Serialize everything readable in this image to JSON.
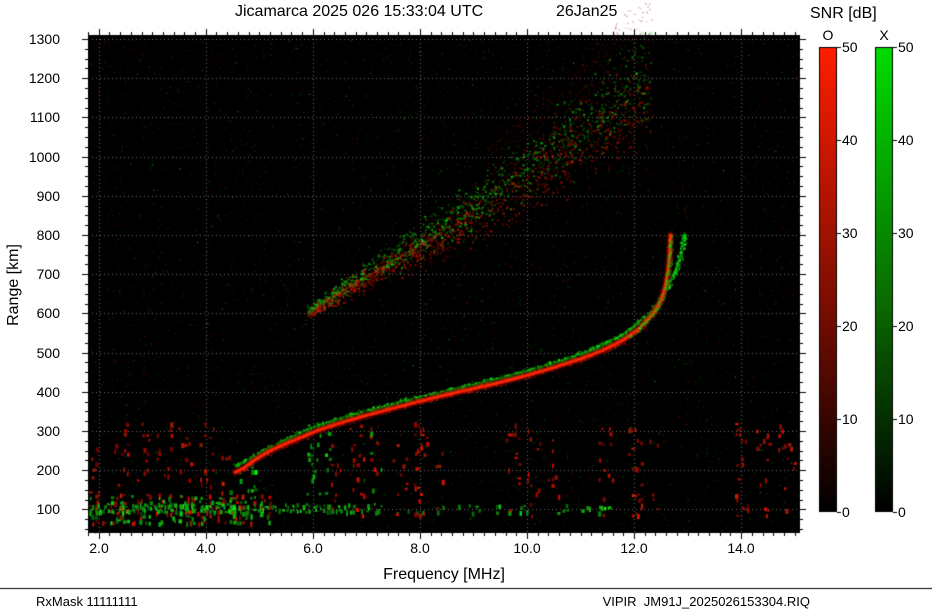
{
  "header": {
    "footer_left": "RxMask 11111111",
    "footer_right": "VIPIR  JM91J_2025026153304.RIQ"
  },
  "chart_data": {
    "type": "scatter",
    "title": "Jicamarca 2025 026 15:33:04 UTC",
    "date_label": "26Jan25",
    "xlabel": "Frequency [MHz]",
    "ylabel": "Range [km]",
    "xlim": [
      1.8,
      15.1
    ],
    "ylim": [
      40,
      1310
    ],
    "grid": true,
    "x_tick_labels": [
      "2.0",
      "4.0",
      "6.0",
      "8.0",
      "10.0",
      "12.0",
      "14.0"
    ],
    "x_ticks": [
      2,
      4,
      6,
      8,
      10,
      12,
      14
    ],
    "y_tick_labels": [
      "1300",
      "1200",
      "1100",
      "1000",
      "900",
      "800",
      "700",
      "600",
      "500",
      "400",
      "300",
      "200",
      "100"
    ],
    "y_ticks": [
      1300,
      1200,
      1100,
      1000,
      900,
      800,
      700,
      600,
      500,
      400,
      300,
      200,
      100
    ],
    "colorbar": {
      "title": "SNR [dB]",
      "o_label": "O",
      "x_label": "X",
      "tick_labels": [
        "50",
        "40",
        "30",
        "20",
        "10",
        "0"
      ],
      "min": 0,
      "max": 50,
      "o_top": "#ff1e00",
      "o_mid": "#7c0e00",
      "x_top": "#00dc00",
      "x_mid": "#0a6a00",
      "bottom": "#000000"
    },
    "colors": {
      "page_bg": "#ffffff",
      "plot_bg": "#000000",
      "grid": "#9a9a9a",
      "o_core": "#ff2800",
      "o_mid": "#b41400",
      "o_glow": "#5a0000",
      "x_core": "#00dd00",
      "frame": "#000000"
    },
    "traces": {
      "o_mode": [
        [
          4.55,
          195
        ],
        [
          4.7,
          205
        ],
        [
          4.9,
          225
        ],
        [
          5.2,
          250
        ],
        [
          5.5,
          268
        ],
        [
          5.8,
          285
        ],
        [
          6.1,
          302
        ],
        [
          6.5,
          320
        ],
        [
          7.0,
          340
        ],
        [
          7.5,
          358
        ],
        [
          8.0,
          376
        ],
        [
          8.5,
          393
        ],
        [
          9.0,
          408
        ],
        [
          9.5,
          424
        ],
        [
          10.0,
          442
        ],
        [
          10.5,
          462
        ],
        [
          11.0,
          484
        ],
        [
          11.4,
          505
        ],
        [
          11.8,
          532
        ],
        [
          12.1,
          562
        ],
        [
          12.35,
          598
        ],
        [
          12.5,
          632
        ],
        [
          12.58,
          668
        ],
        [
          12.63,
          705
        ],
        [
          12.66,
          745
        ],
        [
          12.68,
          800
        ]
      ],
      "x_mode": [
        [
          4.55,
          212
        ],
        [
          4.8,
          230
        ],
        [
          5.1,
          252
        ],
        [
          5.4,
          272
        ],
        [
          5.7,
          292
        ],
        [
          6.0,
          310
        ],
        [
          6.4,
          328
        ],
        [
          6.9,
          348
        ],
        [
          7.4,
          366
        ],
        [
          7.9,
          384
        ],
        [
          8.4,
          400
        ],
        [
          8.9,
          416
        ],
        [
          9.4,
          432
        ],
        [
          9.9,
          450
        ],
        [
          10.4,
          470
        ],
        [
          10.9,
          492
        ],
        [
          11.3,
          514
        ],
        [
          11.7,
          540
        ],
        [
          12.0,
          568
        ],
        [
          12.3,
          602
        ],
        [
          12.5,
          640
        ],
        [
          12.65,
          678
        ],
        [
          12.78,
          715
        ],
        [
          12.87,
          755
        ],
        [
          12.93,
          805
        ]
      ],
      "second_hop": [
        [
          5.9,
          600
        ],
        [
          6.4,
          645
        ],
        [
          6.9,
          685
        ],
        [
          7.4,
          725
        ],
        [
          7.9,
          765
        ],
        [
          8.4,
          805
        ],
        [
          8.9,
          848
        ],
        [
          9.4,
          892
        ],
        [
          9.9,
          938
        ],
        [
          10.4,
          985
        ],
        [
          10.9,
          1032
        ],
        [
          11.4,
          1082
        ],
        [
          11.9,
          1135
        ],
        [
          12.3,
          1180
        ]
      ]
    },
    "speckle_bands": [
      {
        "f0": 1.82,
        "f1": 5.2,
        "r0": 60,
        "r1": 135,
        "density": 0.5,
        "color": "mix",
        "dashed": false
      },
      {
        "f0": 1.82,
        "f1": 7.3,
        "r0": 90,
        "r1": 113,
        "density": 0.65,
        "color": "green",
        "dashed": false
      },
      {
        "f0": 7.3,
        "f1": 11.6,
        "r0": 93,
        "r1": 110,
        "density": 0.2,
        "color": "green",
        "dashed": false
      },
      {
        "f0": 1.82,
        "f1": 2.02,
        "r0": 60,
        "r1": 310,
        "density": 0.22,
        "color": "red",
        "dashed": true
      },
      {
        "f0": 2.3,
        "f1": 2.55,
        "r0": 90,
        "r1": 320,
        "density": 0.3,
        "color": "red",
        "dashed": true
      },
      {
        "f0": 2.72,
        "f1": 2.95,
        "r0": 90,
        "r1": 320,
        "density": 0.28,
        "color": "red",
        "dashed": true
      },
      {
        "f0": 3.1,
        "f1": 3.35,
        "r0": 90,
        "r1": 320,
        "density": 0.32,
        "color": "red",
        "dashed": true
      },
      {
        "f0": 3.5,
        "f1": 3.75,
        "r0": 90,
        "r1": 320,
        "density": 0.28,
        "color": "red",
        "dashed": true
      },
      {
        "f0": 3.9,
        "f1": 4.15,
        "r0": 90,
        "r1": 320,
        "density": 0.28,
        "color": "red",
        "dashed": true
      },
      {
        "f0": 4.3,
        "f1": 4.5,
        "r0": 90,
        "r1": 260,
        "density": 0.22,
        "color": "red",
        "dashed": true
      },
      {
        "f0": 4.45,
        "f1": 4.95,
        "r0": 140,
        "r1": 215,
        "density": 0.3,
        "color": "green",
        "dashed": false
      },
      {
        "f0": 5.9,
        "f1": 6.3,
        "r0": 140,
        "r1": 320,
        "density": 0.32,
        "color": "green",
        "dashed": true
      },
      {
        "f0": 6.35,
        "f1": 6.6,
        "r0": 90,
        "r1": 320,
        "density": 0.3,
        "color": "red",
        "dashed": true
      },
      {
        "f0": 6.7,
        "f1": 6.95,
        "r0": 90,
        "r1": 320,
        "density": 0.28,
        "color": "red",
        "dashed": true
      },
      {
        "f0": 6.95,
        "f1": 7.3,
        "r0": 150,
        "r1": 310,
        "density": 0.25,
        "color": "mix",
        "dashed": true
      },
      {
        "f0": 7.5,
        "f1": 7.75,
        "r0": 90,
        "r1": 320,
        "density": 0.28,
        "color": "red",
        "dashed": true
      },
      {
        "f0": 7.9,
        "f1": 8.15,
        "r0": 90,
        "r1": 320,
        "density": 0.28,
        "color": "red",
        "dashed": true
      },
      {
        "f0": 8.3,
        "f1": 8.5,
        "r0": 90,
        "r1": 250,
        "density": 0.2,
        "color": "red",
        "dashed": true
      },
      {
        "f0": 9.6,
        "f1": 9.85,
        "r0": 90,
        "r1": 320,
        "density": 0.28,
        "color": "red",
        "dashed": true
      },
      {
        "f0": 10.0,
        "f1": 10.25,
        "r0": 90,
        "r1": 320,
        "density": 0.28,
        "color": "red",
        "dashed": true
      },
      {
        "f0": 10.4,
        "f1": 10.6,
        "r0": 90,
        "r1": 280,
        "density": 0.22,
        "color": "red",
        "dashed": true
      },
      {
        "f0": 11.35,
        "f1": 11.6,
        "r0": 90,
        "r1": 320,
        "density": 0.28,
        "color": "red",
        "dashed": true
      },
      {
        "f0": 11.9,
        "f1": 12.15,
        "r0": 90,
        "r1": 320,
        "density": 0.28,
        "color": "red",
        "dashed": true
      },
      {
        "f0": 12.3,
        "f1": 12.5,
        "r0": 90,
        "r1": 280,
        "density": 0.22,
        "color": "red",
        "dashed": true
      },
      {
        "f0": 13.9,
        "f1": 14.15,
        "r0": 90,
        "r1": 320,
        "density": 0.3,
        "color": "red",
        "dashed": true
      },
      {
        "f0": 14.3,
        "f1": 14.55,
        "r0": 90,
        "r1": 320,
        "density": 0.3,
        "color": "red",
        "dashed": true
      },
      {
        "f0": 14.7,
        "f1": 15.05,
        "r0": 90,
        "r1": 320,
        "density": 0.3,
        "color": "red",
        "dashed": true
      }
    ]
  }
}
